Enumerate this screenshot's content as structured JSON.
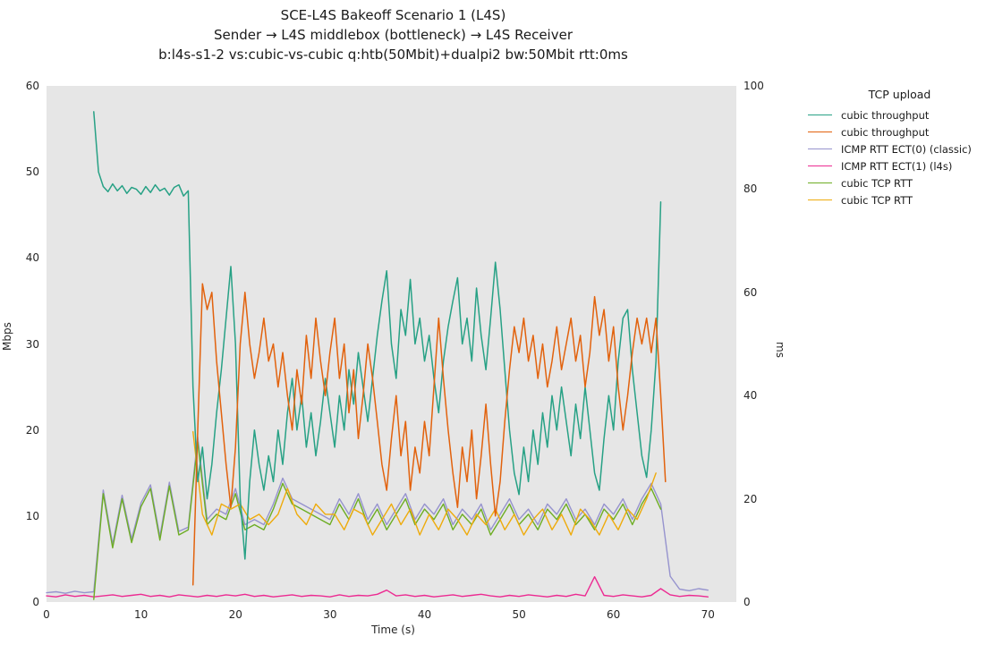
{
  "figure": {
    "title_lines": [
      "SCE-L4S Bakeoff Scenario 1 (L4S)",
      "Sender → L4S middlebox (bottleneck) → L4S Receiver",
      "b:l4s-s1-2 vs:cubic-vs-cubic q:htb(50Mbit)+dualpi2 bw:50Mbit rtt:0ms"
    ]
  },
  "chart_data": {
    "type": "line",
    "title": "SCE-L4S Bakeoff Scenario 1 (L4S) — Sender → L4S middlebox (bottleneck) → L4S Receiver — b:l4s-s1-2 vs:cubic-vs-cubic q:htb(50Mbit)+dualpi2 bw:50Mbit rtt:0ms",
    "xlabel": "Time (s)",
    "ylabel_left": "Mbps",
    "ylabel_right": "ms",
    "xlim": [
      0,
      73
    ],
    "ylim_left": [
      0,
      60
    ],
    "ylim_right": [
      0,
      100
    ],
    "x_ticks": [
      0,
      10,
      20,
      30,
      40,
      50,
      60,
      70
    ],
    "left_ticks": [
      0,
      10,
      20,
      30,
      40,
      50,
      60
    ],
    "right_ticks": [
      0,
      20,
      40,
      60,
      80,
      100
    ],
    "grid": false,
    "plot_bg": "#e6e6e6",
    "legend": {
      "title": "TCP upload",
      "position": "right"
    },
    "series": [
      {
        "name": "cubic throughput",
        "color": "#27a185",
        "axis": "left",
        "unit": "Mbps",
        "t0": 5.0,
        "dt": 0.5,
        "values": [
          57,
          50,
          48.3,
          47.7,
          48.6,
          47.8,
          48.4,
          47.5,
          48.2,
          48,
          47.4,
          48.3,
          47.6,
          48.5,
          47.8,
          48.1,
          47.3,
          48.2,
          48.5,
          47.2,
          47.8,
          25,
          14,
          18,
          12,
          16,
          22,
          27,
          33,
          39,
          30,
          12,
          5,
          14,
          20,
          16,
          13,
          17,
          14,
          20,
          16,
          22,
          26,
          20,
          24,
          18,
          22,
          17,
          21,
          26,
          22,
          18,
          24,
          20,
          27,
          23,
          29,
          25,
          21,
          26,
          31,
          35,
          38.5,
          30,
          26,
          34,
          31,
          37.5,
          30,
          33,
          28,
          31,
          26,
          22,
          28,
          32,
          35,
          37.7,
          30,
          33,
          28,
          36.5,
          31,
          27,
          33,
          39.5,
          34,
          27,
          20,
          15,
          12.5,
          18,
          14,
          20,
          16,
          22,
          18,
          24,
          20,
          25,
          21,
          17,
          23,
          19,
          25,
          20,
          15,
          13,
          19,
          24,
          20,
          28,
          33,
          34,
          27,
          22,
          17,
          14.5,
          20,
          28,
          46.5
        ]
      },
      {
        "name": "cubic throughput",
        "color": "#e2620d",
        "axis": "left",
        "unit": "Mbps",
        "t0": 15.5,
        "dt": 0.5,
        "values": [
          2,
          20,
          37,
          34,
          36,
          28,
          22,
          16,
          11,
          18,
          30,
          36,
          30,
          26,
          29,
          33,
          28,
          30,
          25,
          29,
          24,
          20,
          27,
          23,
          31,
          26,
          33,
          28,
          24,
          29,
          33,
          26,
          30,
          22,
          27,
          19,
          24,
          30,
          26,
          21,
          16,
          13,
          19,
          24,
          17,
          21,
          13,
          18,
          15,
          21,
          17,
          25,
          33,
          26,
          20,
          15,
          11,
          18,
          14,
          20,
          12,
          17,
          23,
          16,
          10,
          14,
          21,
          27,
          32,
          29,
          33,
          28,
          31,
          26,
          30,
          25,
          28,
          32,
          27,
          30,
          33,
          28,
          31,
          25,
          29,
          35.5,
          31,
          34,
          28,
          32,
          25,
          20,
          24,
          29,
          33,
          30,
          33,
          29,
          33,
          24,
          14
        ]
      },
      {
        "name": "ICMP RTT ECT(0) (classic)",
        "color": "#9693ce",
        "axis": "right",
        "unit": "ms",
        "t0": 0,
        "dt": 1,
        "values": [
          1.8,
          2,
          1.7,
          2.1,
          1.8,
          2,
          21.7,
          11.2,
          20.7,
          12.2,
          19.2,
          22.7,
          12.7,
          23.2,
          13.7,
          14.5,
          32,
          16,
          18,
          17,
          22,
          15,
          16,
          15,
          19,
          24,
          20,
          19,
          18,
          17,
          16,
          20,
          17,
          21,
          16,
          19,
          15,
          18,
          21,
          16,
          19,
          17,
          20,
          15,
          18,
          16,
          19,
          14,
          17,
          20,
          16,
          18,
          15,
          19,
          17,
          20,
          16,
          18,
          15,
          19,
          17,
          20,
          16,
          20,
          23,
          19,
          5,
          2.5,
          2.2,
          2.6,
          2.3
        ]
      },
      {
        "name": "ICMP RTT ECT(1) (l4s)",
        "color": "#ec2b92",
        "axis": "right",
        "unit": "ms",
        "t0": 0,
        "dt": 1,
        "values": [
          1.2,
          1,
          1.4,
          1.1,
          1.3,
          1,
          1.2,
          1.4,
          1.1,
          1.3,
          1.5,
          1.1,
          1.3,
          1,
          1.4,
          1.2,
          1,
          1.3,
          1.1,
          1.4,
          1.2,
          1.5,
          1.1,
          1.3,
          1,
          1.2,
          1.4,
          1.1,
          1.3,
          1.2,
          1,
          1.4,
          1.1,
          1.3,
          1.2,
          1.5,
          2.3,
          1.2,
          1.4,
          1.1,
          1.3,
          1,
          1.2,
          1.4,
          1.1,
          1.3,
          1.5,
          1.2,
          1,
          1.3,
          1.1,
          1.4,
          1.2,
          1,
          1.3,
          1.1,
          1.5,
          1.2,
          4.9,
          1.3,
          1.1,
          1.4,
          1.2,
          1,
          1.3,
          2.6,
          1.4,
          1.1,
          1.3,
          1.2,
          1
        ]
      },
      {
        "name": "cubic TCP RTT",
        "color": "#6dad24",
        "axis": "right",
        "unit": "ms",
        "t0": 5,
        "dt": 1,
        "values": [
          0.5,
          21,
          10.5,
          20,
          11.5,
          18.5,
          22,
          12,
          22.5,
          13,
          14,
          31,
          15,
          17,
          16,
          21,
          14,
          15,
          14,
          18,
          23,
          19,
          18,
          17,
          16,
          15,
          19,
          16,
          20,
          15,
          18,
          14,
          17,
          20,
          15,
          18,
          16,
          19,
          14,
          17,
          15,
          18,
          13,
          16,
          19,
          15,
          17,
          14,
          18,
          16,
          19,
          15,
          17,
          14,
          18,
          16,
          19,
          15,
          19,
          22,
          18
        ]
      },
      {
        "name": "cubic TCP RTT",
        "color": "#eeab0c",
        "axis": "right",
        "unit": "ms",
        "t0": 15.5,
        "dt": 1,
        "values": [
          33,
          17,
          13,
          19,
          18,
          19,
          16,
          17,
          15,
          17,
          22,
          17,
          15,
          19,
          17,
          17,
          14,
          18,
          17,
          13,
          16,
          19,
          15,
          18,
          13,
          17,
          14,
          18,
          16,
          13,
          17,
          15,
          18,
          14,
          17,
          13,
          16,
          18,
          14,
          17,
          13,
          18,
          16,
          13,
          17,
          14,
          18,
          16,
          20,
          25
        ]
      }
    ]
  }
}
